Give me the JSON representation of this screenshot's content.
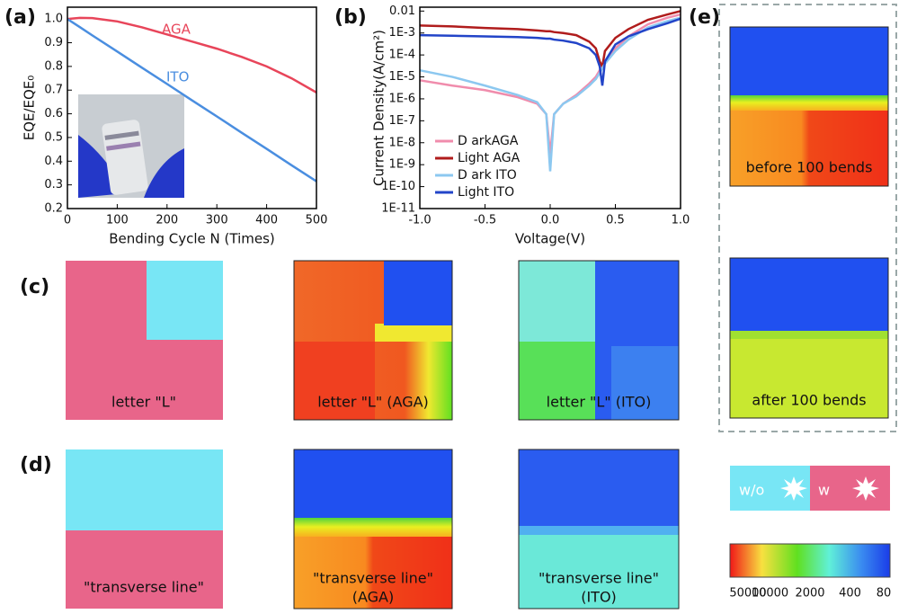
{
  "chart_data": [
    {
      "type": "line",
      "panel_label": "(a)",
      "xlabel": "Bending Cycle N (Times)",
      "ylabel": "EQE/EQE₀",
      "x": [
        0,
        25,
        50,
        100,
        150,
        200,
        250,
        300,
        350,
        400,
        450,
        500
      ],
      "series": [
        {
          "name": "AGA",
          "color": "#e8455a",
          "values": [
            1.0,
            1.005,
            1.004,
            0.99,
            0.965,
            0.935,
            0.905,
            0.875,
            0.84,
            0.8,
            0.75,
            0.69
          ]
        },
        {
          "name": "ITO",
          "color": "#4a8ee0",
          "values": [
            1.0,
            0.966,
            0.931,
            0.863,
            0.794,
            0.726,
            0.657,
            0.589,
            0.52,
            0.452,
            0.383,
            0.315
          ]
        }
      ],
      "xlim": [
        0,
        500
      ],
      "xticks": [
        0,
        100,
        200,
        300,
        400,
        500
      ],
      "ylim": [
        0.2,
        1.05
      ],
      "yticks": [
        0.2,
        0.3,
        0.4,
        0.5,
        0.6,
        0.7,
        0.8,
        0.9,
        {
          "value": 1,
          "label": "1.0"
        }
      ],
      "legend": "inline"
    },
    {
      "type": "line",
      "panel_label": "(b)",
      "xlabel": "Voltage(V)",
      "ylabel": "Current Density(A/cm²)",
      "ylog": true,
      "x": [
        -1,
        -0.75,
        -0.5,
        -0.25,
        -0.1,
        -0.03,
        0,
        0.03,
        0.1,
        0.2,
        0.3,
        0.35,
        0.38,
        0.4,
        0.42,
        0.5,
        0.6,
        0.75,
        0.9,
        1.0
      ],
      "series": [
        {
          "name": "D arkAGA",
          "color": "#f08cac",
          "values": [
            7e-06,
            4e-06,
            2.5e-06,
            1.2e-06,
            6e-07,
            2e-07,
            3e-09,
            2e-07,
            6e-07,
            1.5e-06,
            5e-06,
            1e-05,
            2e-05,
            3e-05,
            5e-05,
            0.0002,
            0.0007,
            0.0025,
            0.005,
            0.007
          ]
        },
        {
          "name": "Light AGA",
          "color": "#b01c1c",
          "values": [
            0.0022,
            0.002,
            0.0017,
            0.0015,
            0.0013,
            0.0012,
            0.0012,
            0.0011,
            0.001,
            0.0008,
            0.0004,
            0.0002,
            5e-05,
            3e-05,
            0.00015,
            0.0006,
            0.0015,
            0.004,
            0.007,
            0.01
          ]
        },
        {
          "name": "D ark ITO",
          "color": "#8cc8f0",
          "values": [
            2e-05,
            1e-05,
            4e-06,
            1.5e-06,
            7e-07,
            2e-07,
            5e-10,
            2e-07,
            6e-07,
            1.3e-06,
            4e-06,
            8e-06,
            1.5e-05,
            2.5e-05,
            4e-05,
            0.00015,
            0.0005,
            0.0018,
            0.0035,
            0.005
          ]
        },
        {
          "name": "Light ITO",
          "color": "#2244c8",
          "values": [
            0.0008,
            0.00075,
            0.0007,
            0.00065,
            0.0006,
            0.00055,
            0.00055,
            0.0005,
            0.00045,
            0.00035,
            0.0002,
            0.0001,
            3e-05,
            4e-06,
            5e-05,
            0.0003,
            0.0007,
            0.0015,
            0.0028,
            0.0045
          ]
        }
      ],
      "xlim": [
        -1,
        1
      ],
      "xticks": [
        {
          "value": -1,
          "label": "-1.0"
        },
        -0.5,
        {
          "value": 0,
          "label": "0.0"
        },
        0.5,
        {
          "value": 1,
          "label": "1.0"
        }
      ],
      "ylim": [
        1e-11,
        0.015
      ],
      "yticks": [
        0.01,
        {
          "value": 0.001,
          "label": "1E-3"
        },
        {
          "value": 0.0001,
          "label": "1E-4"
        },
        {
          "value": 1e-05,
          "label": "1E-5"
        },
        {
          "value": 1e-06,
          "label": "1E-6"
        },
        {
          "value": 1e-07,
          "label": "1E-7"
        },
        {
          "value": 1e-08,
          "label": "1E-8"
        },
        {
          "value": 1e-09,
          "label": "1E-9"
        },
        {
          "value": 1e-10,
          "label": "1E-10"
        },
        {
          "value": 1e-11,
          "label": "1E-11"
        }
      ],
      "legend": "lower left"
    }
  ],
  "panels": {
    "c": {
      "label": "(c)",
      "items": [
        [
          "letter \"L\""
        ],
        [
          "letter \"L\" (AGA)"
        ],
        [
          "letter \"L\" (ITO)"
        ]
      ]
    },
    "d": {
      "label": "(d)",
      "items": [
        [
          "\"transverse line\""
        ],
        [
          "\"transverse line\"",
          "(AGA)"
        ],
        [
          "\"transverse line\"",
          "(ITO)"
        ]
      ]
    },
    "e": {
      "label": "(e)",
      "items": [
        [
          "before 100 bends"
        ],
        [
          "after 100 bends"
        ]
      ]
    },
    "switch": [
      "w/o",
      "w"
    ],
    "colorbar": [
      50000,
      10000,
      2000,
      400,
      80
    ]
  }
}
